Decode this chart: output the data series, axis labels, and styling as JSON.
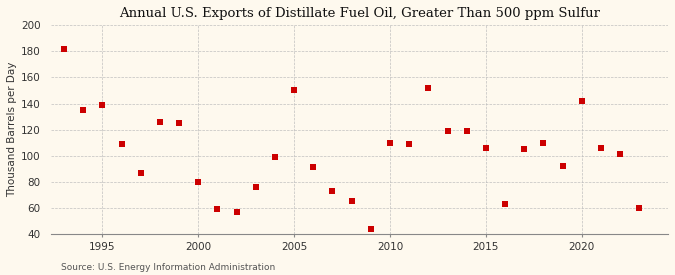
{
  "years": [
    1993,
    1994,
    1995,
    1996,
    1997,
    1998,
    1999,
    2000,
    2001,
    2002,
    2003,
    2004,
    2005,
    2006,
    2007,
    2008,
    2009,
    2010,
    2011,
    2012,
    2013,
    2014,
    2015,
    2016,
    2017,
    2018,
    2019,
    2020,
    2021,
    2022,
    2023
  ],
  "values": [
    182,
    135,
    139,
    109,
    87,
    126,
    125,
    80,
    59,
    57,
    76,
    99,
    150,
    91,
    73,
    65,
    44,
    110,
    109,
    152,
    119,
    119,
    106,
    63,
    105,
    110,
    92,
    142,
    106,
    101,
    60
  ],
  "title": "Annual U.S. Exports of Distillate Fuel Oil, Greater Than 500 ppm Sulfur",
  "ylabel": "Thousand Barrels per Day",
  "source": "Source: U.S. Energy Information Administration",
  "ylim": [
    40,
    200
  ],
  "yticks": [
    40,
    60,
    80,
    100,
    120,
    140,
    160,
    180,
    200
  ],
  "xticks": [
    1995,
    2000,
    2005,
    2010,
    2015,
    2020
  ],
  "xlim_left": 1992.3,
  "xlim_right": 2024.5,
  "marker_color": "#cc0000",
  "marker_size": 18,
  "bg_color": "#fef9ee",
  "grid_color": "#bbbbbb",
  "title_fontsize": 9.5,
  "label_fontsize": 7.5,
  "tick_fontsize": 7.5,
  "source_fontsize": 6.5
}
